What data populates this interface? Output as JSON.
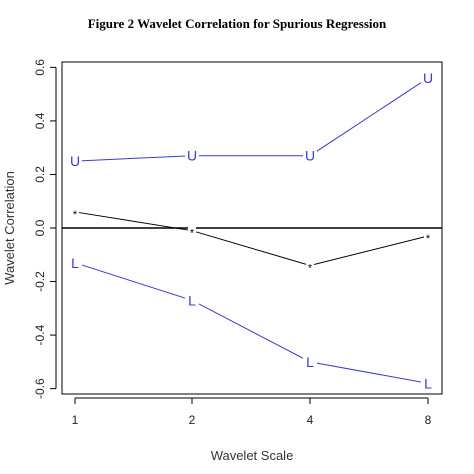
{
  "chart_data": {
    "type": "line",
    "title": "Figure 2 Wavelet Correlation for Spurious Regression",
    "xlabel": "Wavelet Scale",
    "ylabel": "Wavelet Correlation",
    "x": [
      1,
      2,
      4,
      8
    ],
    "x_tick_labels": [
      "1",
      "2",
      "4",
      "8"
    ],
    "y_ticks": [
      -0.6,
      -0.4,
      -0.2,
      0.0,
      0.2,
      0.4,
      0.6
    ],
    "y_tick_labels": [
      "-0.6",
      "-0.4",
      "-0.2",
      "0.0",
      "0.2",
      "0.4",
      "0.6"
    ],
    "ylim": [
      -0.62,
      0.62
    ],
    "x_scale": "log2",
    "grid": false,
    "reference_line_y": 0,
    "series": [
      {
        "marker": "U",
        "color": "#3a3ad0",
        "values": [
          0.25,
          0.27,
          0.27,
          0.56
        ]
      },
      {
        "marker": "*",
        "color": "#000000",
        "values": [
          0.06,
          -0.01,
          -0.14,
          -0.03
        ]
      },
      {
        "marker": "L",
        "color": "#3a3ad0",
        "values": [
          -0.13,
          -0.27,
          -0.5,
          -0.58
        ]
      }
    ]
  }
}
